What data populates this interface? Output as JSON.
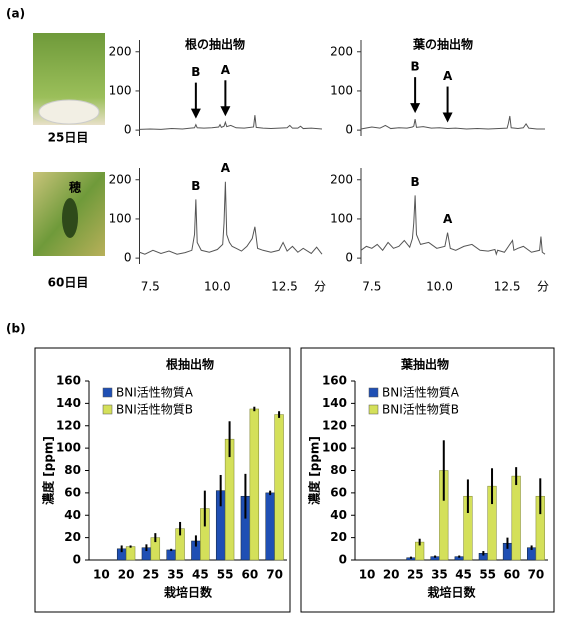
{
  "labels": {
    "panel_a": "(a)",
    "panel_b": "(b)",
    "day25": "25日目",
    "day60": "60日目",
    "ear": "穂"
  },
  "chart_data": [
    {
      "type": "line",
      "title": "根の抽出物",
      "color": "#555555",
      "x": [
        7.1,
        7.5,
        7.9,
        8.3,
        8.7,
        9.0,
        9.15,
        9.2,
        9.25,
        9.5,
        9.8,
        10.05,
        10.1,
        10.15,
        10.25,
        10.3,
        10.35,
        10.5,
        10.7,
        11.0,
        11.35,
        11.4,
        11.45,
        11.7,
        12.0,
        12.3,
        12.6,
        12.7,
        12.8,
        13.0,
        13.1,
        13.2,
        13.5,
        13.9
      ],
      "values": [
        2,
        3,
        2,
        4,
        3,
        5,
        6,
        14,
        6,
        5,
        6,
        8,
        14,
        7,
        10,
        20,
        9,
        12,
        6,
        5,
        8,
        38,
        7,
        5,
        4,
        5,
        6,
        12,
        5,
        5,
        10,
        4,
        5,
        3
      ],
      "xlim": [
        7.1,
        13.9
      ],
      "ylim": [
        -15,
        230
      ],
      "yticks": [
        0,
        100,
        200
      ],
      "annotations": [
        {
          "text": "B",
          "x": 9.2,
          "arrow": true
        },
        {
          "text": "A",
          "x": 10.3,
          "arrow": true
        }
      ]
    },
    {
      "type": "line",
      "title": "葉の抽出物",
      "color": "#555555",
      "x": [
        7.1,
        7.5,
        7.8,
        8.0,
        8.2,
        8.5,
        8.8,
        9.0,
        9.05,
        9.1,
        9.15,
        9.4,
        9.7,
        10.0,
        10.3,
        10.6,
        11.0,
        11.4,
        11.8,
        12.2,
        12.5,
        12.55,
        12.6,
        12.65,
        12.9,
        13.1,
        13.2,
        13.3,
        13.6,
        13.9
      ],
      "values": [
        3,
        8,
        5,
        12,
        4,
        6,
        5,
        8,
        10,
        28,
        7,
        9,
        5,
        6,
        4,
        5,
        3,
        4,
        3,
        4,
        5,
        18,
        36,
        6,
        4,
        6,
        16,
        5,
        3,
        3
      ],
      "xlim": [
        7.1,
        13.9
      ],
      "ylim": [
        -15,
        230
      ],
      "yticks": [
        0,
        100,
        200
      ],
      "annotations": [
        {
          "text": "B",
          "x": 9.1,
          "arrow": true
        },
        {
          "text": "A",
          "x": 10.3,
          "arrow": true
        }
      ]
    },
    {
      "type": "line",
      "color": "#555555",
      "x": [
        7.1,
        7.3,
        7.6,
        7.9,
        8.2,
        8.5,
        8.8,
        9.05,
        9.15,
        9.2,
        9.25,
        9.4,
        9.7,
        10.0,
        10.2,
        10.25,
        10.3,
        10.35,
        10.45,
        10.55,
        10.7,
        10.9,
        11.1,
        11.3,
        11.4,
        11.5,
        11.7,
        12.0,
        12.3,
        12.45,
        12.6,
        12.8,
        13.0,
        13.2,
        13.5,
        13.7,
        13.9
      ],
      "values": [
        15,
        10,
        20,
        12,
        18,
        10,
        14,
        20,
        60,
        150,
        40,
        20,
        15,
        22,
        35,
        90,
        195,
        60,
        40,
        30,
        25,
        18,
        30,
        50,
        80,
        25,
        20,
        15,
        20,
        40,
        18,
        30,
        15,
        25,
        12,
        28,
        10
      ],
      "xlim": [
        7.1,
        13.9
      ],
      "ylim": [
        -15,
        230
      ],
      "yticks": [
        0,
        100,
        200
      ],
      "xticks": [
        7.5,
        {
          "value": 10,
          "label": "10.0"
        },
        12.5
      ],
      "xlabel": "分",
      "annotations": [
        {
          "text": "B",
          "x": 9.2
        },
        {
          "text": "A",
          "x": 10.3
        }
      ]
    },
    {
      "type": "line",
      "color": "#555555",
      "x": [
        7.1,
        7.3,
        7.5,
        7.7,
        7.9,
        8.1,
        8.3,
        8.5,
        8.7,
        8.9,
        9.0,
        9.05,
        9.1,
        9.15,
        9.3,
        9.6,
        9.9,
        10.2,
        10.3,
        10.4,
        10.6,
        10.9,
        11.2,
        11.5,
        11.8,
        12.05,
        12.1,
        12.15,
        12.4,
        12.7,
        12.75,
        12.9,
        13.1,
        13.4,
        13.7,
        13.75,
        13.8,
        13.9
      ],
      "values": [
        20,
        30,
        25,
        35,
        20,
        40,
        25,
        30,
        45,
        28,
        50,
        90,
        160,
        60,
        35,
        40,
        25,
        30,
        65,
        25,
        20,
        30,
        35,
        20,
        18,
        22,
        10,
        20,
        15,
        45,
        20,
        25,
        30,
        15,
        20,
        55,
        15,
        10
      ],
      "xlim": [
        7.1,
        13.9
      ],
      "ylim": [
        -15,
        230
      ],
      "yticks": [
        0,
        100,
        200
      ],
      "xticks": [
        7.5,
        {
          "value": 10,
          "label": "10.0"
        },
        12.5
      ],
      "xlabel": "分",
      "annotations": [
        {
          "text": "B",
          "x": 9.1
        },
        {
          "text": "A",
          "x": 10.3
        }
      ]
    },
    {
      "type": "bar",
      "title": "根抽出物",
      "xlabel": "栽培日数",
      "ylabel": "濃度 [ppm]",
      "legend": "upper left",
      "categories": [
        "10",
        "20",
        "25",
        "35",
        "45",
        "55",
        "60",
        "70"
      ],
      "series": [
        {
          "name": "BNI活性物質A",
          "color": "#1f4fb4",
          "values": [
            0,
            10,
            11,
            9,
            17,
            62,
            57,
            60
          ],
          "errors": [
            0,
            3,
            3,
            1,
            5,
            14,
            20,
            2
          ]
        },
        {
          "name": "BNI活性物質B",
          "color": "#d4e05a",
          "values": [
            0,
            12,
            20,
            28,
            46,
            108,
            135,
            130
          ],
          "errors": [
            0,
            1,
            4,
            6,
            16,
            16,
            2,
            3
          ]
        }
      ],
      "ylim": [
        0,
        160
      ],
      "yticks": [
        0,
        20,
        40,
        60,
        80,
        100,
        120,
        140,
        160
      ]
    },
    {
      "type": "bar",
      "title": "葉抽出物",
      "xlabel": "栽培日数",
      "ylabel": "濃度 [ppm]",
      "legend": "upper left",
      "categories": [
        "10",
        "20",
        "25",
        "35",
        "45",
        "55",
        "60",
        "70"
      ],
      "series": [
        {
          "name": "BNI活性物質A",
          "color": "#1f4fb4",
          "values": [
            0,
            0,
            2,
            3,
            3,
            6,
            15,
            11
          ],
          "errors": [
            0,
            0,
            1,
            1,
            1,
            2,
            5,
            2
          ]
        },
        {
          "name": "BNI活性物質B",
          "color": "#d4e05a",
          "values": [
            0,
            0,
            16,
            80,
            57,
            66,
            75,
            57
          ],
          "errors": [
            0,
            0,
            3,
            27,
            15,
            16,
            8,
            16
          ]
        }
      ],
      "ylim": [
        0,
        160
      ],
      "yticks": [
        0,
        20,
        40,
        60,
        80,
        100,
        120,
        140,
        160
      ]
    }
  ]
}
